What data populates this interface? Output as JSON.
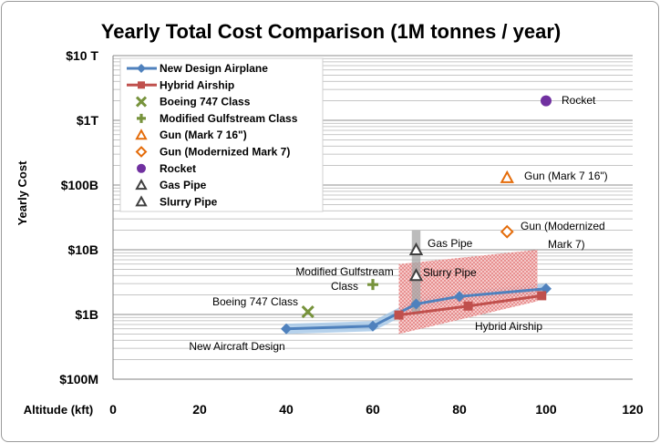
{
  "chart_data": {
    "type": "scatter",
    "title": "Yearly Total Cost Comparison (1M tonnes / year)",
    "xlabel": "Altitude (kft)",
    "ylabel": "Yearly Cost",
    "x_ticks": [
      0,
      20,
      40,
      60,
      80,
      100,
      120
    ],
    "xlim": [
      0,
      120
    ],
    "y_scale": "log",
    "ylim": [
      100000000.0,
      10000000000000.0
    ],
    "y_tick_labels": [
      "$10 T",
      "$1T",
      "$100B",
      "$10B",
      "$1B",
      "$100M"
    ],
    "grid": "horizontal minor (log) gridlines",
    "legend_position": "top-left",
    "colors": {
      "airplane": "#4f81bd",
      "airplane_band": "#9dc3e6",
      "airship": "#c0504d",
      "airship_band": "#f2a0a0",
      "boeing": "#77933c",
      "gulfstream": "#77933c",
      "gun": "#e46c0a",
      "rocket": "#7030a0",
      "pipe": "#404040",
      "pipe_band": "#a6a6a6"
    },
    "series": [
      {
        "name": "New Design Airplane",
        "marker": "diamond",
        "line": true,
        "x": [
          40,
          60,
          70,
          80,
          100
        ],
        "y": [
          600000000.0,
          660000000.0,
          1450000000.0,
          1900000000.0,
          2500000000.0
        ]
      },
      {
        "name": "Hybrid Airship",
        "marker": "square",
        "line": true,
        "x": [
          66,
          82,
          99
        ],
        "y": [
          980000000.0,
          1350000000.0,
          1950000000.0
        ]
      },
      {
        "name": "Boeing 747 Class",
        "marker": "x",
        "x": [
          45
        ],
        "y": [
          1100000000.0
        ]
      },
      {
        "name": "Modified Gulfstream Class",
        "marker": "plus",
        "x": [
          60
        ],
        "y": [
          2900000000.0
        ]
      },
      {
        "name": "Gun (Mark 7 16\")",
        "marker": "triangle-open",
        "x": [
          91
        ],
        "y": [
          130000000000.0
        ]
      },
      {
        "name": "Gun (Modernized Mark 7)",
        "marker": "diamond-open",
        "x": [
          91
        ],
        "y": [
          19000000000.0
        ]
      },
      {
        "name": "Rocket",
        "marker": "circle",
        "x": [
          100
        ],
        "y": [
          2000000000000.0
        ]
      },
      {
        "name": "Gas Pipe",
        "marker": "triangle-open",
        "x": [
          70
        ],
        "y": [
          10000000000.0
        ]
      },
      {
        "name": "Slurry Pipe",
        "marker": "triangle-open",
        "x": [
          70
        ],
        "y": [
          4000000000.0
        ]
      }
    ],
    "bands": [
      {
        "for": "New Design Airplane",
        "x": [
          40,
          60,
          70,
          80,
          100
        ],
        "y_low": [
          500000000.0,
          550000000.0,
          1200000000.0,
          1600000000.0,
          2100000000.0
        ],
        "y_high": [
          720000000.0,
          790000000.0,
          1750000000.0,
          2300000000.0,
          3000000000.0
        ]
      },
      {
        "for": "Hybrid Airship",
        "x": [
          66,
          98
        ],
        "y_low": [
          500000000.0,
          1600000000.0
        ],
        "y_high": [
          6000000000.0,
          10000000000.0
        ]
      },
      {
        "for": "Gas Pipe / Slurry Pipe",
        "x": [
          69,
          71
        ],
        "y_low": [
          1000000000.0,
          1000000000.0
        ],
        "y_high": [
          20000000000.0,
          20000000000.0
        ]
      }
    ],
    "annotations": {
      "new_aircraft": "New Aircraft Design",
      "boeing": "Boeing 747 Class",
      "gulfstream_1": "Modified Gulfstream",
      "gulfstream_2": "Class",
      "gas_pipe": "Gas Pipe",
      "slurry_pipe": "Slurry Pipe",
      "airship": "Hybrid Airship",
      "gun_modern_1": "Gun (Modernized",
      "gun_modern_2": "Mark 7)",
      "gun_mark7": "Gun (Mark 7 16\")",
      "rocket": "Rocket"
    },
    "legend": [
      "New Design Airplane",
      "Hybrid Airship",
      "Boeing 747 Class",
      "Modified Gulfstream Class",
      "Gun (Mark 7 16\")",
      "Gun (Modernized Mark 7)",
      "Rocket",
      "Gas Pipe",
      "Slurry Pipe"
    ]
  }
}
